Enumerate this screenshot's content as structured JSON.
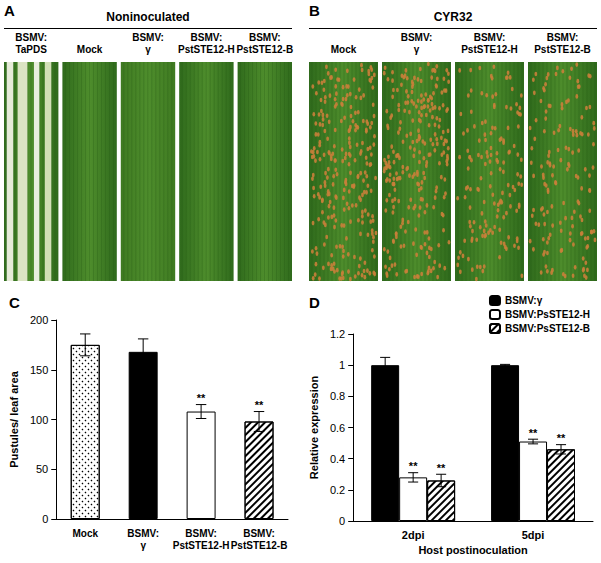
{
  "panels": [
    {
      "label": "A",
      "title": "Noninoculated",
      "leaves": [
        "BSMV: TaPDS",
        "Mock",
        "BSMV: γ",
        "BSMV: PstSTE12-H",
        "BSMV: PstSTE12-B"
      ]
    },
    {
      "label": "B",
      "title": "CYR32",
      "leaves": [
        "Mock",
        "BSMV: γ",
        "BSMV: PstSTE12-H",
        "BSMV: PstSTE12-B"
      ]
    }
  ],
  "chart_data": [
    {
      "title": "C",
      "type": "bar",
      "categories": [
        "Mock",
        "BSMV: γ",
        "BSMV: PstSTE12-H",
        "BSMV: PstSTE12-B"
      ],
      "values": [
        175,
        168,
        108,
        98
      ],
      "errors": [
        11,
        13,
        7,
        10
      ],
      "significance": [
        null,
        null,
        "**",
        "**"
      ],
      "colors": [
        "#ffffff",
        "#000000",
        "#ffffff",
        "#ffffff"
      ],
      "y_label": "Pustules/ leaf area",
      "ylim": [
        0,
        200
      ],
      "yticks": [
        0,
        50,
        100,
        150,
        200
      ],
      "grid": false
    },
    {
      "title": "D",
      "type": "bar",
      "categories": [
        "2dpi",
        "5dpi"
      ],
      "x_label": "Host postinoculation",
      "y_label": "Relative expression",
      "series": [
        {
          "name": "BSMV:γ",
          "color": "#000000",
          "values": [
            1.0,
            1.0
          ],
          "errors": [
            0.05,
            0.005
          ],
          "significance": [
            null,
            null
          ]
        },
        {
          "name": "BSMV:PsSTE12-H",
          "color": "#ffffff",
          "values": [
            0.28,
            0.51
          ],
          "errors": [
            0.03,
            0.015
          ],
          "significance": [
            "**",
            "**"
          ]
        },
        {
          "name": "BSMV:PsSTE12-B",
          "color": "#ffffff",
          "values": [
            0.26,
            0.46
          ],
          "errors": [
            0.04,
            0.03
          ],
          "significance": [
            "**",
            "**"
          ]
        }
      ],
      "ylim": [
        0,
        1.2
      ],
      "yticks": [
        0,
        0.2,
        0.4,
        0.6,
        0.8,
        1,
        1.2
      ],
      "grid": false,
      "legend": "top-right"
    }
  ]
}
